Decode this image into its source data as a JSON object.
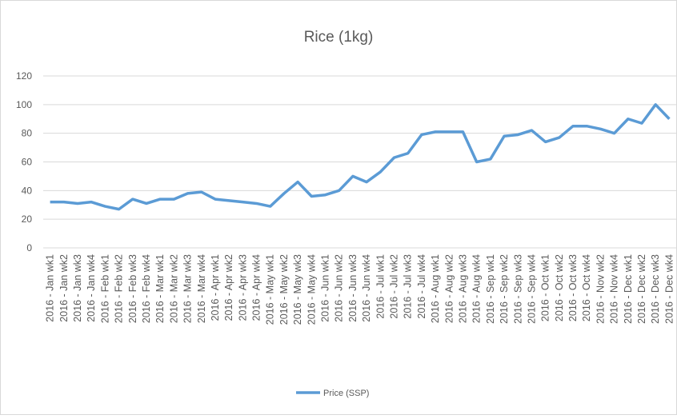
{
  "chart_data": {
    "type": "line",
    "title": "Rice (1kg)",
    "categories": [
      "2016 - Jan wk1",
      "2016 - Jan wk2",
      "2016 - Jan wk3",
      "2016 - Jan wk4",
      "2016 - Feb wk1",
      "2016 - Feb wk2",
      "2016 - Feb wk3",
      "2016 - Feb wk4",
      "2016 - Mar wk1",
      "2016 - Mar wk2",
      "2016 - Mar wk3",
      "2016 - Mar wk4",
      "2016 - Apr wk1",
      "2016 - Apr wk2",
      "2016 - Apr wk3",
      "2016 - Apr wk4",
      "2016 - May wk1",
      "2016 - May wk2",
      "2016 - May wk3",
      "2016 - May wk4",
      "2016 - Jun wk1",
      "2016 - Jun wk2",
      "2016 - Jun wk3",
      "2016 - Jun wk4",
      "2016 - Jul wk1",
      "2016 - Jul wk2",
      "2016 - Jul wk3",
      "2016 - Jul wk4",
      "2016 - Aug wk1",
      "2016 - Aug wk2",
      "2016 - Aug wk3",
      "2016 - Aug wk4",
      "2016 - Sep wk1",
      "2016 - Sep wk2",
      "2016 - Sep wk3",
      "2016 - Sep wk4",
      "2016 - Oct wk1",
      "2016 - Oct wk2",
      "2016 - Oct wk3",
      "2016 - Oct wk4",
      "2016 - Nov wk2",
      "2016 - Nov wk4",
      "2016 - Dec wk1",
      "2016 - Dec wk2",
      "2016 - Dec wk3",
      "2016 - Dec wk4"
    ],
    "series": [
      {
        "name": "Price (SSP)",
        "color": "#5b9bd5",
        "values": [
          32,
          32,
          31,
          32,
          29,
          27,
          34,
          31,
          34,
          34,
          38,
          39,
          34,
          33,
          32,
          31,
          29,
          38,
          46,
          36,
          37,
          40,
          50,
          46,
          53,
          63,
          66,
          79,
          81,
          81,
          81,
          60,
          62,
          78,
          79,
          82,
          74,
          77,
          85,
          85,
          83,
          80,
          90,
          87,
          100,
          90
        ]
      }
    ],
    "ylim": [
      0,
      120
    ],
    "yticks": [
      0,
      20,
      40,
      60,
      80,
      100,
      120
    ],
    "grid": true,
    "legend": "bottom"
  }
}
